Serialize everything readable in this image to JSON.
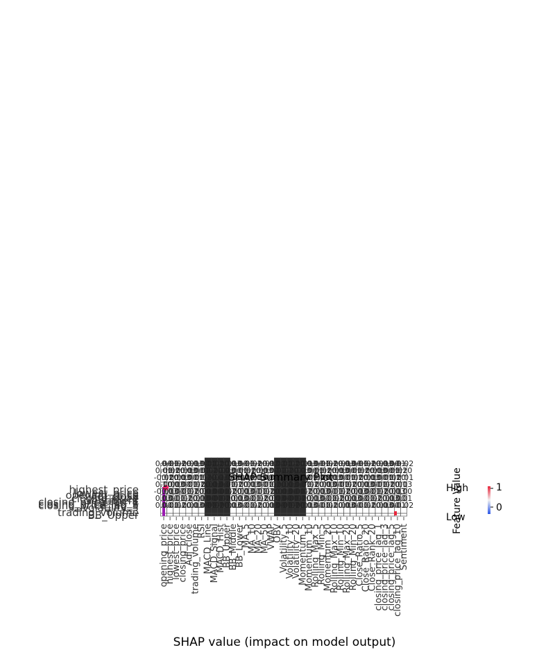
{
  "chart_data": {
    "type": "heatmap",
    "title": "SHAP Summary Plot",
    "xlabel": "SHAP value (impact on model output)",
    "x_categories": [
      "opening_price",
      "highest_price",
      "lowest_price",
      "closing_price",
      "Adj_close",
      "trading_volume",
      "RSI",
      "MACD_Line",
      "MACD_Signal",
      "MACD_Hist",
      "BB_Upper",
      "BB_Middle",
      "BB_Lower",
      "MA_5",
      "MA_10",
      "MA_20",
      "MA_50",
      "VWAP",
      "OBV",
      "Volatility_5",
      "Volatility_10",
      "Volatility_20",
      "Momentum_5",
      "Momentum_10",
      "Rolling_Max_5",
      "Rolling_Min_5",
      "Momentum_20",
      "Rolling_Max_10",
      "Rolling_Min_10",
      "Rolling_Max_20",
      "Rolling_Min_20",
      "Close_Ratio_5",
      "Close_Ratio_20",
      "Close_Rank_20",
      "closing_price_lag_1",
      "closing_price_lag_3",
      "closing_price_lag_5",
      "closing_price_lag_10",
      "Sentiment"
    ],
    "y_categories": [
      "highest_price",
      "lowest_price",
      "opening_price",
      "Adj_close",
      "closing_price",
      "Sentiment",
      "closing_price_lag_1",
      "closing_price_lag_3",
      "closing_price_lag_5",
      "Volatility_5",
      "trading_volume",
      "BB_Upper"
    ],
    "cell_label_sample": [
      "0.00",
      "0.01",
      "-0.02",
      "0.10",
      "-0.01",
      "0.03"
    ],
    "colorbar": {
      "label": "Feature Value",
      "high_label": "High",
      "low_label": "Low",
      "ticks": [
        "1",
        "0"
      ],
      "low_color": "#2b57e8",
      "high_color": "#e8273c"
    },
    "grid": false,
    "legend": "right"
  }
}
